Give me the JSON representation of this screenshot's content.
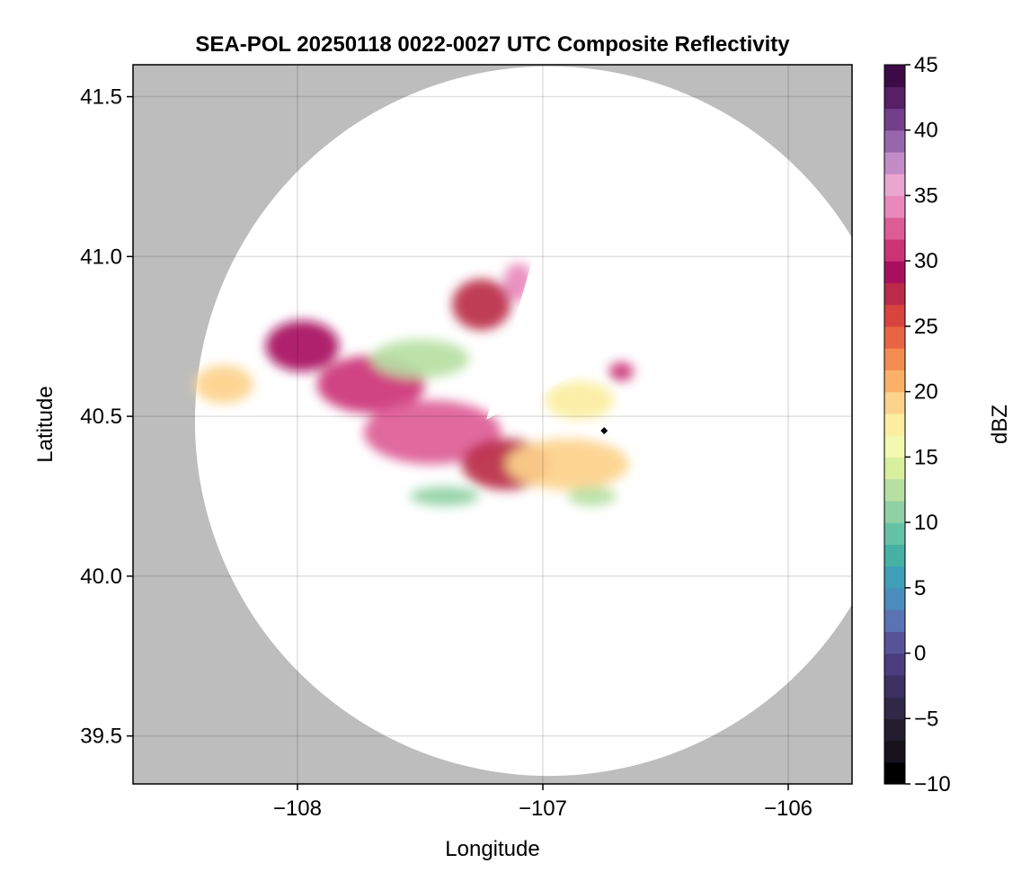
{
  "chart_data": {
    "type": "heatmap",
    "title": "SEA-POL 20250118 0022-0027 UTC Composite Reflectivity",
    "xlabel": "Longitude",
    "ylabel": "Latitude",
    "xlim": [
      -108.67,
      -105.74
    ],
    "ylim": [
      39.35,
      41.6
    ],
    "x_ticks": [
      -108,
      -107,
      -106
    ],
    "x_tick_labels": [
      "−108",
      "−107",
      "−106"
    ],
    "y_ticks": [
      39.5,
      40.0,
      40.5,
      41.0,
      41.5
    ],
    "y_tick_labels": [
      "39.5",
      "40.0",
      "40.5",
      "41.0",
      "41.5"
    ],
    "grid": true,
    "background_color": "#bdbdbd",
    "radar_coverage": {
      "shape": "circle",
      "center_lon": -106.975,
      "center_lat": 40.485,
      "radius_lat_deg": 1.11,
      "fill": "#ffffff"
    },
    "radar_site": {
      "lon": -106.75,
      "lat": 40.455,
      "marker": "diamond",
      "color": "#000000"
    },
    "colorbar": {
      "label": "dBZ",
      "min": -10,
      "max": 45,
      "step": 2.5,
      "ticks": [
        -10,
        -5,
        0,
        5,
        10,
        15,
        20,
        25,
        30,
        35,
        40,
        45
      ],
      "tick_labels": [
        "−10",
        "−5",
        "0",
        "5",
        "10",
        "15",
        "20",
        "25",
        "30",
        "35",
        "40",
        "45"
      ],
      "colormap": "Spectral-extended",
      "colors": [
        "#000000",
        "#16131c",
        "#221e30",
        "#2f2848",
        "#3b3263",
        "#4a3e80",
        "#5a5299",
        "#5a73b4",
        "#4a8cbc",
        "#3f9fb8",
        "#45b0a3",
        "#66c2a5",
        "#8fd0a4",
        "#b6e0a2",
        "#d8ef9e",
        "#f3f9ae",
        "#fbeea0",
        "#fdd38b",
        "#fbb068",
        "#f58c50",
        "#e96443",
        "#d8433e",
        "#bb2a48",
        "#a8105e",
        "#cc3377",
        "#dd5c96",
        "#e888bb",
        "#e9a6d0",
        "#c48cc7",
        "#9866ad",
        "#743f8a",
        "#561f66",
        "#3d0a48"
      ]
    },
    "echo_clusters": [
      {
        "lon": -108.3,
        "lat": 40.6,
        "rx": 0.12,
        "ry": 0.06,
        "dbz": 19
      },
      {
        "lon": -107.98,
        "lat": 40.72,
        "rx": 0.15,
        "ry": 0.08,
        "dbz": 29
      },
      {
        "lon": -107.7,
        "lat": 40.6,
        "rx": 0.22,
        "ry": 0.09,
        "dbz": 31
      },
      {
        "lon": -107.45,
        "lat": 40.45,
        "rx": 0.28,
        "ry": 0.1,
        "dbz": 33
      },
      {
        "lon": -107.5,
        "lat": 40.68,
        "rx": 0.2,
        "ry": 0.06,
        "dbz": 13
      },
      {
        "lon": -107.25,
        "lat": 40.85,
        "rx": 0.12,
        "ry": 0.08,
        "dbz": 27
      },
      {
        "lon": -107.1,
        "lat": 40.92,
        "rx": 0.06,
        "ry": 0.06,
        "dbz": 34
      },
      {
        "lon": -107.15,
        "lat": 40.35,
        "rx": 0.18,
        "ry": 0.08,
        "dbz": 27
      },
      {
        "lon": -106.9,
        "lat": 40.35,
        "rx": 0.25,
        "ry": 0.08,
        "dbz": 20
      },
      {
        "lon": -106.85,
        "lat": 40.55,
        "rx": 0.14,
        "ry": 0.06,
        "dbz": 18
      },
      {
        "lon": -106.68,
        "lat": 40.64,
        "rx": 0.05,
        "ry": 0.03,
        "dbz": 32
      },
      {
        "lon": -107.4,
        "lat": 40.25,
        "rx": 0.14,
        "ry": 0.03,
        "dbz": 11
      },
      {
        "lon": -106.8,
        "lat": 40.25,
        "rx": 0.1,
        "ry": 0.03,
        "dbz": 12
      }
    ]
  }
}
